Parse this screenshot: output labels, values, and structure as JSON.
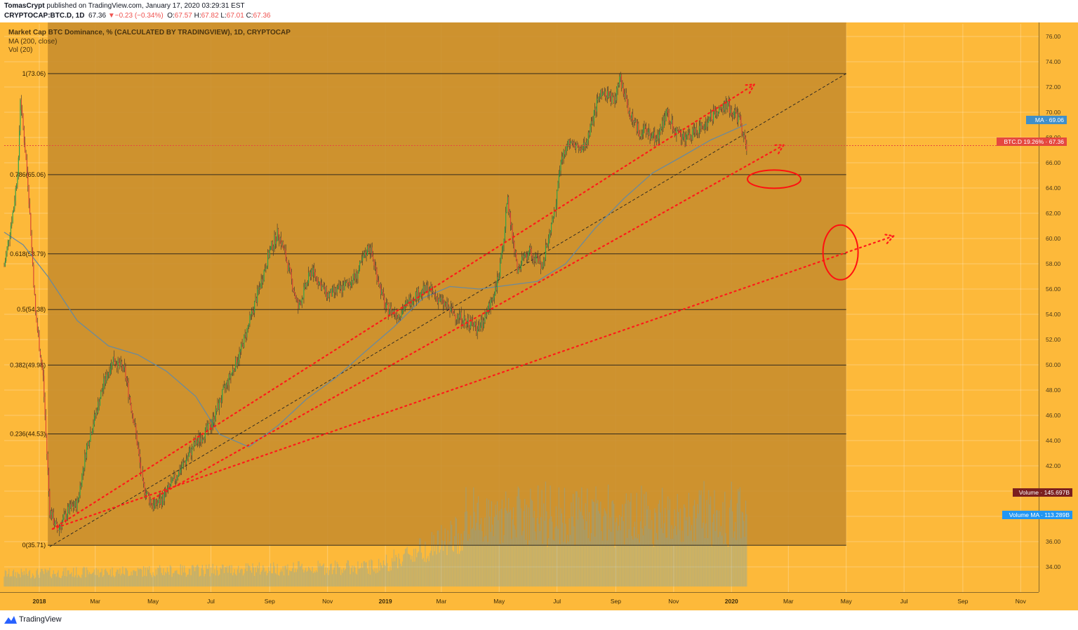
{
  "header": {
    "author": "TomasCrypt",
    "published": "published on TradingView.com, January 17, 2020 03:29:31 EST",
    "symbol": "CRYPTOCAP:BTC.D, 1D",
    "last": "67.36",
    "change": "−0.23 (−0.34%)",
    "o_label": "O:",
    "o": "67.57",
    "h_label": "H:",
    "h": "67.82",
    "l_label": "L:",
    "l": "67.01",
    "c_label": "C:",
    "c": "67.36"
  },
  "legend": {
    "title": "Market Cap BTC Dominance, % (CALCULATED BY TRADINGVIEW), 1D, CRYPTOCAP",
    "ma": "MA (200, close)",
    "vol": "Vol (20)"
  },
  "price_tags": {
    "ma": "MA · 69.06",
    "btcd": "BTC.D 19.26% · 67.36",
    "volume": "Volume · 145.697B",
    "volume_ma": "Volume MA · 113.289B"
  },
  "footer": {
    "brand": "TradingView"
  },
  "colors": {
    "bg": "#FDB93A",
    "range": "#C98E2E",
    "up": "#26a64a",
    "down": "#d84234",
    "ma": "#6b8a9c",
    "trend": "#ff1a1a",
    "fib": "#1a1a1a",
    "ma_tag": "#3f8fc9",
    "price_tag": "#e5483f",
    "vol_tag": "#7a1f1f",
    "volma_tag": "#2196f3"
  },
  "chart_data": {
    "type": "line",
    "title": "Market Cap BTC Dominance, % (CALCULATED BY TRADINGVIEW), 1D, CRYPTOCAP",
    "ylim": [
      32.0,
      77.0
    ],
    "y_ticks": [
      34,
      36,
      38,
      40,
      42,
      44,
      46,
      48,
      50,
      52,
      54,
      56,
      58,
      60,
      62,
      64,
      66,
      68,
      70,
      72,
      74,
      76
    ],
    "y_tick_labels": [
      "34.00",
      "36.00",
      "38.00",
      "40.00",
      "42.00",
      "44.00",
      "46.00",
      "48.00",
      "50.00",
      "52.00",
      "54.00",
      "56.00",
      "58.00",
      "60.00",
      "62.00",
      "64.00",
      "66.00",
      "68.00",
      "70.00",
      "72.00",
      "74.00",
      "76.00"
    ],
    "x_start": "2017-11-25",
    "x_end": "2020-11-20",
    "x_ticks": [
      "2018-01-01",
      "2018-03-01",
      "2018-05-01",
      "2018-07-01",
      "2018-09-01",
      "2018-11-01",
      "2019-01-01",
      "2019-03-01",
      "2019-05-01",
      "2019-07-01",
      "2019-09-01",
      "2019-11-01",
      "2020-01-01",
      "2020-03-01",
      "2020-05-01",
      "2020-07-01",
      "2020-09-01",
      "2020-11-01"
    ],
    "x_tick_labels": [
      "2018",
      "Mar",
      "May",
      "Jul",
      "Sep",
      "Nov",
      "2019",
      "Mar",
      "May",
      "Jul",
      "Sep",
      "Nov",
      "2020",
      "Mar",
      "May",
      "Jul",
      "Sep",
      "Nov"
    ],
    "series": [
      {
        "name": "BTC.D",
        "x": [
          "2017-11-25",
          "2017-12-05",
          "2017-12-10",
          "2017-12-12",
          "2017-12-20",
          "2017-12-28",
          "2018-01-05",
          "2018-01-12",
          "2018-01-20",
          "2018-02-01",
          "2018-02-10",
          "2018-02-20",
          "2018-03-01",
          "2018-03-10",
          "2018-03-20",
          "2018-04-01",
          "2018-04-12",
          "2018-04-20",
          "2018-05-01",
          "2018-05-10",
          "2018-05-20",
          "2018-06-01",
          "2018-06-15",
          "2018-07-01",
          "2018-07-15",
          "2018-08-01",
          "2018-08-15",
          "2018-09-01",
          "2018-09-10",
          "2018-09-18",
          "2018-10-01",
          "2018-10-15",
          "2018-11-01",
          "2018-11-15",
          "2018-12-01",
          "2018-12-15",
          "2019-01-01",
          "2019-01-15",
          "2019-02-01",
          "2019-02-15",
          "2019-03-01",
          "2019-03-15",
          "2019-04-01",
          "2019-04-10",
          "2019-04-20",
          "2019-05-01",
          "2019-05-10",
          "2019-05-20",
          "2019-06-01",
          "2019-06-15",
          "2019-06-28",
          "2019-07-05",
          "2019-07-15",
          "2019-07-25",
          "2019-08-01",
          "2019-08-15",
          "2019-09-01",
          "2019-09-05",
          "2019-09-15",
          "2019-09-25",
          "2019-10-01",
          "2019-10-15",
          "2019-10-25",
          "2019-11-01",
          "2019-11-15",
          "2019-12-01",
          "2019-12-15",
          "2019-12-28",
          "2020-01-05",
          "2020-01-10",
          "2020-01-14",
          "2020-01-17"
        ],
        "values": [
          57.8,
          62.5,
          66.0,
          71.2,
          64.5,
          54.0,
          49.0,
          38.5,
          36.9,
          38.5,
          39.0,
          43.5,
          46.0,
          48.5,
          50.5,
          49.5,
          45.0,
          40.5,
          38.8,
          39.3,
          40.5,
          42.0,
          43.8,
          45.2,
          48.0,
          51.0,
          54.5,
          59.0,
          60.5,
          58.5,
          54.5,
          57.5,
          55.5,
          56.0,
          57.0,
          59.5,
          54.5,
          54.0,
          55.5,
          56.0,
          55.0,
          54.0,
          53.3,
          52.8,
          54.5,
          57.0,
          63.0,
          57.5,
          59.0,
          57.8,
          62.0,
          66.0,
          68.0,
          67.0,
          67.5,
          71.5,
          71.0,
          72.9,
          70.0,
          68.5,
          68.5,
          68.0,
          70.0,
          68.6,
          68.0,
          68.8,
          70.0,
          70.5,
          69.8,
          69.4,
          68.0,
          67.36
        ]
      },
      {
        "name": "MA (200, close)",
        "x": [
          "2017-11-25",
          "2017-12-15",
          "2018-01-10",
          "2018-02-10",
          "2018-03-15",
          "2018-04-15",
          "2018-05-15",
          "2018-06-15",
          "2018-07-10",
          "2018-08-10",
          "2018-09-10",
          "2018-10-10",
          "2018-11-10",
          "2018-12-10",
          "2019-01-10",
          "2019-02-10",
          "2019-03-10",
          "2019-04-10",
          "2019-05-10",
          "2019-06-10",
          "2019-07-10",
          "2019-08-10",
          "2019-09-10",
          "2019-10-10",
          "2019-11-10",
          "2019-12-10",
          "2020-01-17"
        ],
        "values": [
          60.5,
          59.5,
          57.0,
          53.5,
          51.5,
          50.8,
          49.5,
          47.5,
          44.5,
          43.5,
          45.2,
          47.3,
          49.0,
          51.0,
          53.0,
          55.3,
          56.2,
          56.0,
          56.3,
          56.6,
          58.0,
          60.8,
          63.2,
          65.2,
          66.5,
          67.8,
          69.06
        ]
      }
    ],
    "fibonacci": {
      "labels": [
        "0(35.71)",
        "0.236(44.53)",
        "0.382(49.98)",
        "0.5(54.38)",
        "0.618(58.79)",
        "0.786(65.06)",
        "1(73.06)"
      ],
      "levels": [
        35.71,
        44.53,
        49.98,
        54.38,
        58.79,
        65.06,
        73.06
      ],
      "range_x": [
        "2018-01-10",
        "2020-05-01"
      ]
    },
    "volume_range": {
      "max_label": "145.697B",
      "ma_label": "113.289B"
    },
    "grid": true,
    "legend": "top-left"
  }
}
